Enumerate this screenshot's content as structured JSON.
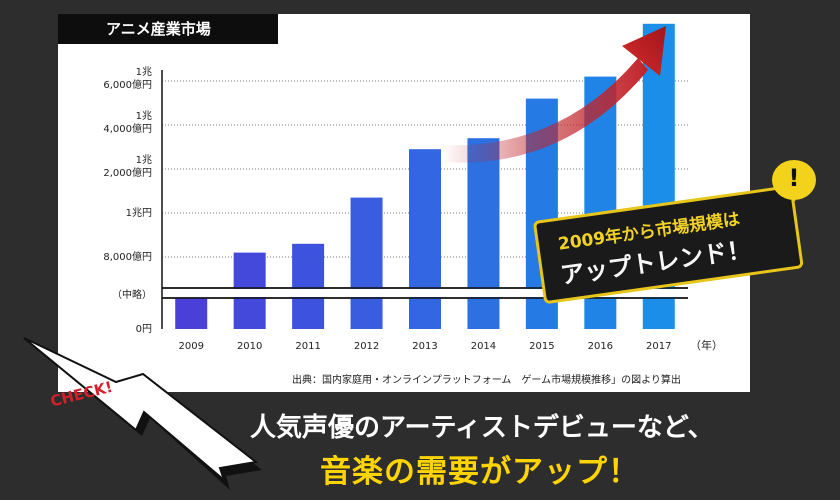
{
  "title": "アニメ産業市場",
  "source": "出典：国内家庭用・オンラインプラットフォーム　ゲーム市場規模推移」の図より算出",
  "callout": {
    "line1": "2009年から市場規模は",
    "line2": "アップトレンド！"
  },
  "bubble": "!",
  "check_label": "CHECK!",
  "headline": {
    "line1": "人気声優のアーティストデビューなど、",
    "line2": "音楽の需要がアップ！"
  },
  "colors": {
    "bar_start": "#4a3fd9",
    "bar_end": "#1a8ee8",
    "arrow": "#c0242a",
    "accent_yellow": "#f3d21c"
  },
  "chart_data": {
    "type": "bar",
    "categories": [
      "2009",
      "2010",
      "2011",
      "2012",
      "2013",
      "2014",
      "2015",
      "2016",
      "2017"
    ],
    "values": [
      0.75,
      0.82,
      0.86,
      1.07,
      1.29,
      1.34,
      1.52,
      1.62,
      1.86
    ],
    "value_unit": "兆円",
    "y_ticks": [
      {
        "value": 0,
        "lines": [
          "0円"
        ]
      },
      {
        "value": 0.8,
        "lines": [
          "8,000億円"
        ]
      },
      {
        "value": 1.0,
        "lines": [
          "1兆円"
        ]
      },
      {
        "value": 1.2,
        "lines": [
          "1兆",
          "2,000億円"
        ]
      },
      {
        "value": 1.4,
        "lines": [
          "1兆",
          "4,000億円"
        ]
      },
      {
        "value": 1.6,
        "lines": [
          "1兆",
          "6,000億円"
        ]
      }
    ],
    "break_label": "（中略）",
    "xlabel": "（年）",
    "ylabel": "",
    "grid": true,
    "legend": "none"
  }
}
